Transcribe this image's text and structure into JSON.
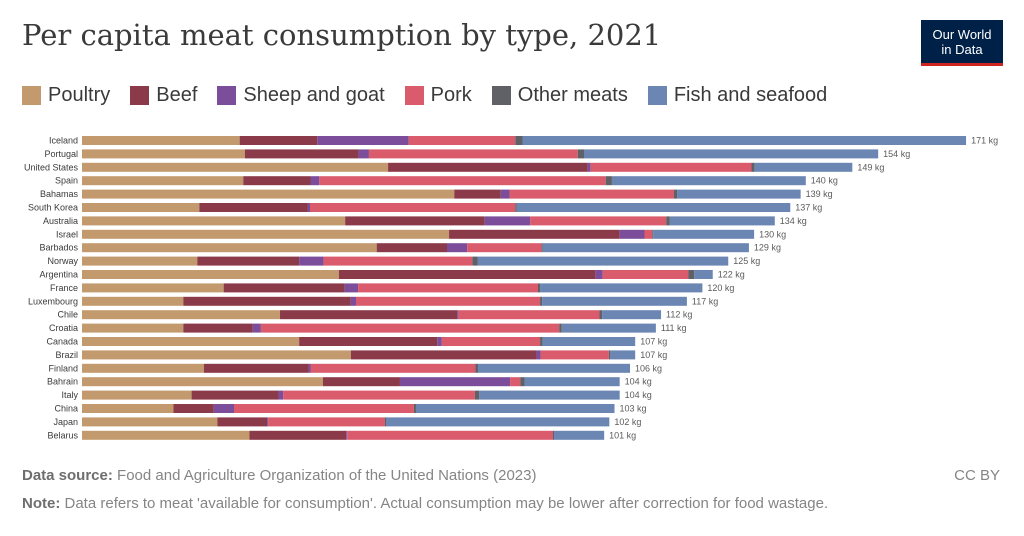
{
  "title": "Per capita meat consumption by type, 2021",
  "logo": {
    "line1": "Our World",
    "line2": "in Data"
  },
  "footer": {
    "source_label": "Data source:",
    "source_text": "Food and Agriculture Organization of the United Nations (2023)",
    "license": "CC BY",
    "note_label": "Note:",
    "note_text": "Data refers to meat 'available for consumption'. Actual consumption may be lower after correction for food wastage."
  },
  "chart_data": {
    "type": "bar",
    "orientation": "horizontal",
    "stacked": true,
    "unit": "kg",
    "legend_position": "top",
    "grid": false,
    "categories": [
      "Iceland",
      "Portugal",
      "United States",
      "Spain",
      "Bahamas",
      "South Korea",
      "Australia",
      "Israel",
      "Barbados",
      "Norway",
      "Argentina",
      "France",
      "Luxembourg",
      "Chile",
      "Croatia",
      "Canada",
      "Brazil",
      "Finland",
      "Bahrain",
      "Italy",
      "China",
      "Japan",
      "Belarus"
    ],
    "totals": [
      171,
      154,
      149,
      140,
      139,
      137,
      134,
      130,
      129,
      125,
      122,
      120,
      117,
      112,
      111,
      107,
      107,
      106,
      104,
      104,
      103,
      102,
      101
    ],
    "series": [
      {
        "name": "Poultry",
        "color": "#c39a6e",
        "values": [
          30.5,
          31.5,
          59.2,
          31.2,
          72,
          22.7,
          50.9,
          71,
          57,
          22.3,
          49.7,
          27.4,
          19.6,
          38.3,
          19.6,
          42,
          52,
          23.6,
          46.6,
          21.2,
          17.7,
          26.2,
          32.4
        ]
      },
      {
        "name": "Beef",
        "color": "#8b3a49",
        "values": [
          15,
          22,
          38.6,
          13,
          9,
          21,
          27,
          33,
          13.6,
          19.7,
          49.6,
          23.4,
          32.4,
          34.3,
          13.4,
          26.7,
          35.9,
          20.2,
          14.9,
          16.8,
          7.8,
          9.6,
          18.7
        ]
      },
      {
        "name": "Sheep and goat",
        "color": "#7c4d9a",
        "values": [
          17.7,
          2,
          0.6,
          1.7,
          1.7,
          0.4,
          8.8,
          4.8,
          3.9,
          4.7,
          1.4,
          2.6,
          1,
          0.2,
          1.6,
          0.9,
          0.8,
          0.4,
          21.3,
          0.9,
          3.9,
          0.2,
          0.2
        ]
      },
      {
        "name": "Pork",
        "color": "#d95b6c",
        "values": [
          20.6,
          40.4,
          31.1,
          55.4,
          31.8,
          39.7,
          26.3,
          1.5,
          14.4,
          28.8,
          16.6,
          34.8,
          35.6,
          27.3,
          57.7,
          19,
          13.2,
          31.9,
          2,
          37.1,
          34.8,
          22.6,
          39.8
        ]
      },
      {
        "name": "Other meats",
        "color": "#5f6167",
        "values": [
          1.4,
          1.2,
          0.6,
          1.2,
          0.6,
          0.3,
          0.7,
          0.2,
          0.2,
          1,
          1.1,
          0.4,
          0.4,
          0.5,
          0.5,
          0.5,
          0.3,
          0.5,
          0.8,
          0.8,
          0.4,
          0.2,
          0.2
        ]
      },
      {
        "name": "Fish and seafood",
        "color": "#6b86b2",
        "values": [
          85.8,
          56.9,
          18.9,
          37.5,
          23.9,
          52.9,
          20.3,
          19.5,
          39.9,
          48.5,
          3.6,
          31.4,
          28,
          11.4,
          18.2,
          17.9,
          4.8,
          29.4,
          18.4,
          27.2,
          38.4,
          43.2,
          9.7
        ]
      }
    ]
  }
}
